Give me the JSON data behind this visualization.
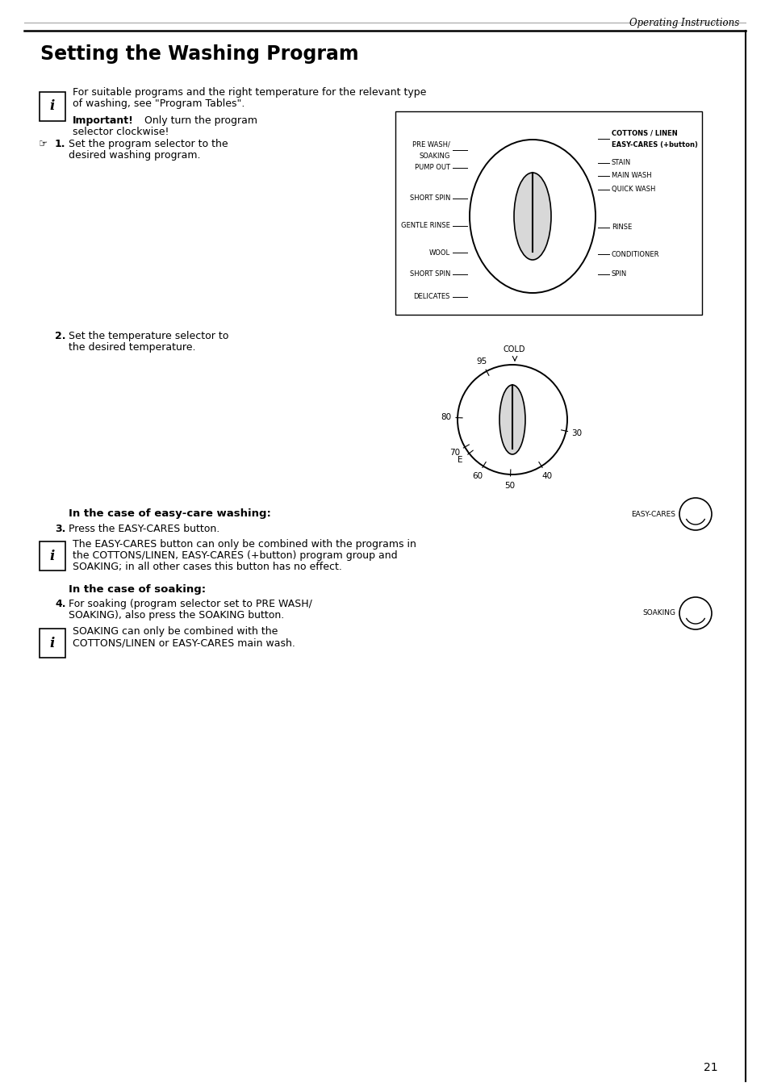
{
  "page_title": "Operating Instructions",
  "section_title": "Setting the Washing Program",
  "bg_color": "#ffffff",
  "text_color": "#000000",
  "page_number": "21"
}
